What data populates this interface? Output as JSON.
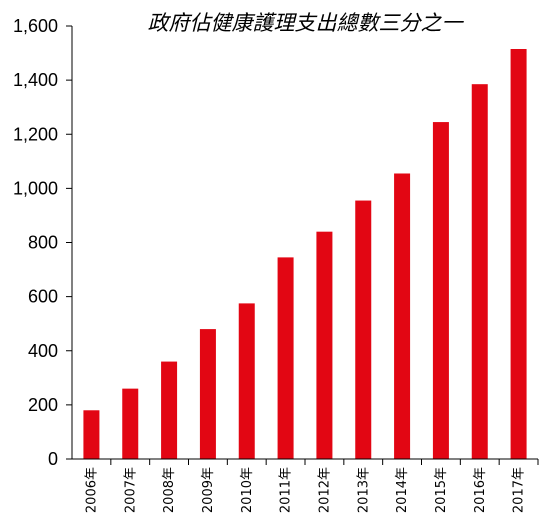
{
  "chart_data": {
    "type": "bar",
    "title": "政府佔健康護理支出總數三分之一",
    "xlabel": "",
    "ylabel": "",
    "categories": [
      "2006年",
      "2007年",
      "2008年",
      "2009年",
      "2010年",
      "2011年",
      "2012年",
      "2013年",
      "2014年",
      "2015年",
      "2016年",
      "2017年"
    ],
    "values": [
      180,
      260,
      360,
      480,
      575,
      745,
      840,
      955,
      1055,
      1245,
      1385,
      1515
    ],
    "ylim": [
      0,
      1600
    ],
    "yticks": [
      0,
      200,
      400,
      600,
      800,
      1000,
      1200,
      1400,
      1600
    ],
    "ytick_labels": [
      "0",
      "200",
      "400",
      "600",
      "800",
      "1,000",
      "1,200",
      "1,400",
      "1,600"
    ],
    "grid": false,
    "legend": "none",
    "bar_color": "#e20613",
    "axis_color": "#000000"
  }
}
